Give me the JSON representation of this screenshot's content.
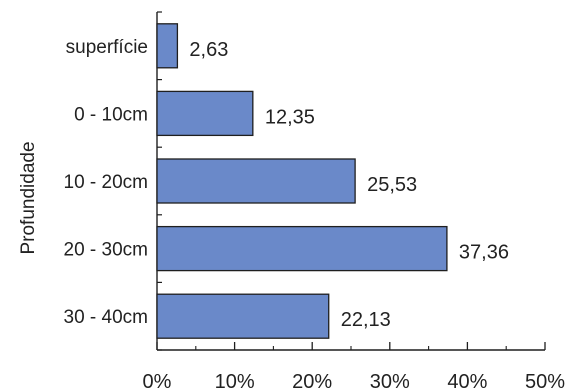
{
  "chart_data": {
    "type": "bar",
    "orientation": "horizontal",
    "categories": [
      "superfície",
      "0 - 10cm",
      "10 - 20cm",
      "20 - 30cm",
      "30 - 40cm"
    ],
    "values": [
      2.63,
      12.35,
      25.53,
      37.36,
      22.13
    ],
    "value_labels": [
      "2,63",
      "12,35",
      "25,53",
      "37,36",
      "22,13"
    ],
    "title": "",
    "xlabel": "",
    "ylabel": "Profundidade",
    "xlim": [
      0,
      50
    ],
    "x_ticks": [
      0,
      10,
      20,
      30,
      40,
      50
    ],
    "x_tick_labels": [
      "0%",
      "10%",
      "20%",
      "30%",
      "40%",
      "50%"
    ],
    "grid": false,
    "legend": "none",
    "colors": {
      "bar_fill": "#6a89c9",
      "bar_stroke": "#1f1f1f",
      "axis": "#1f1f1f"
    }
  }
}
